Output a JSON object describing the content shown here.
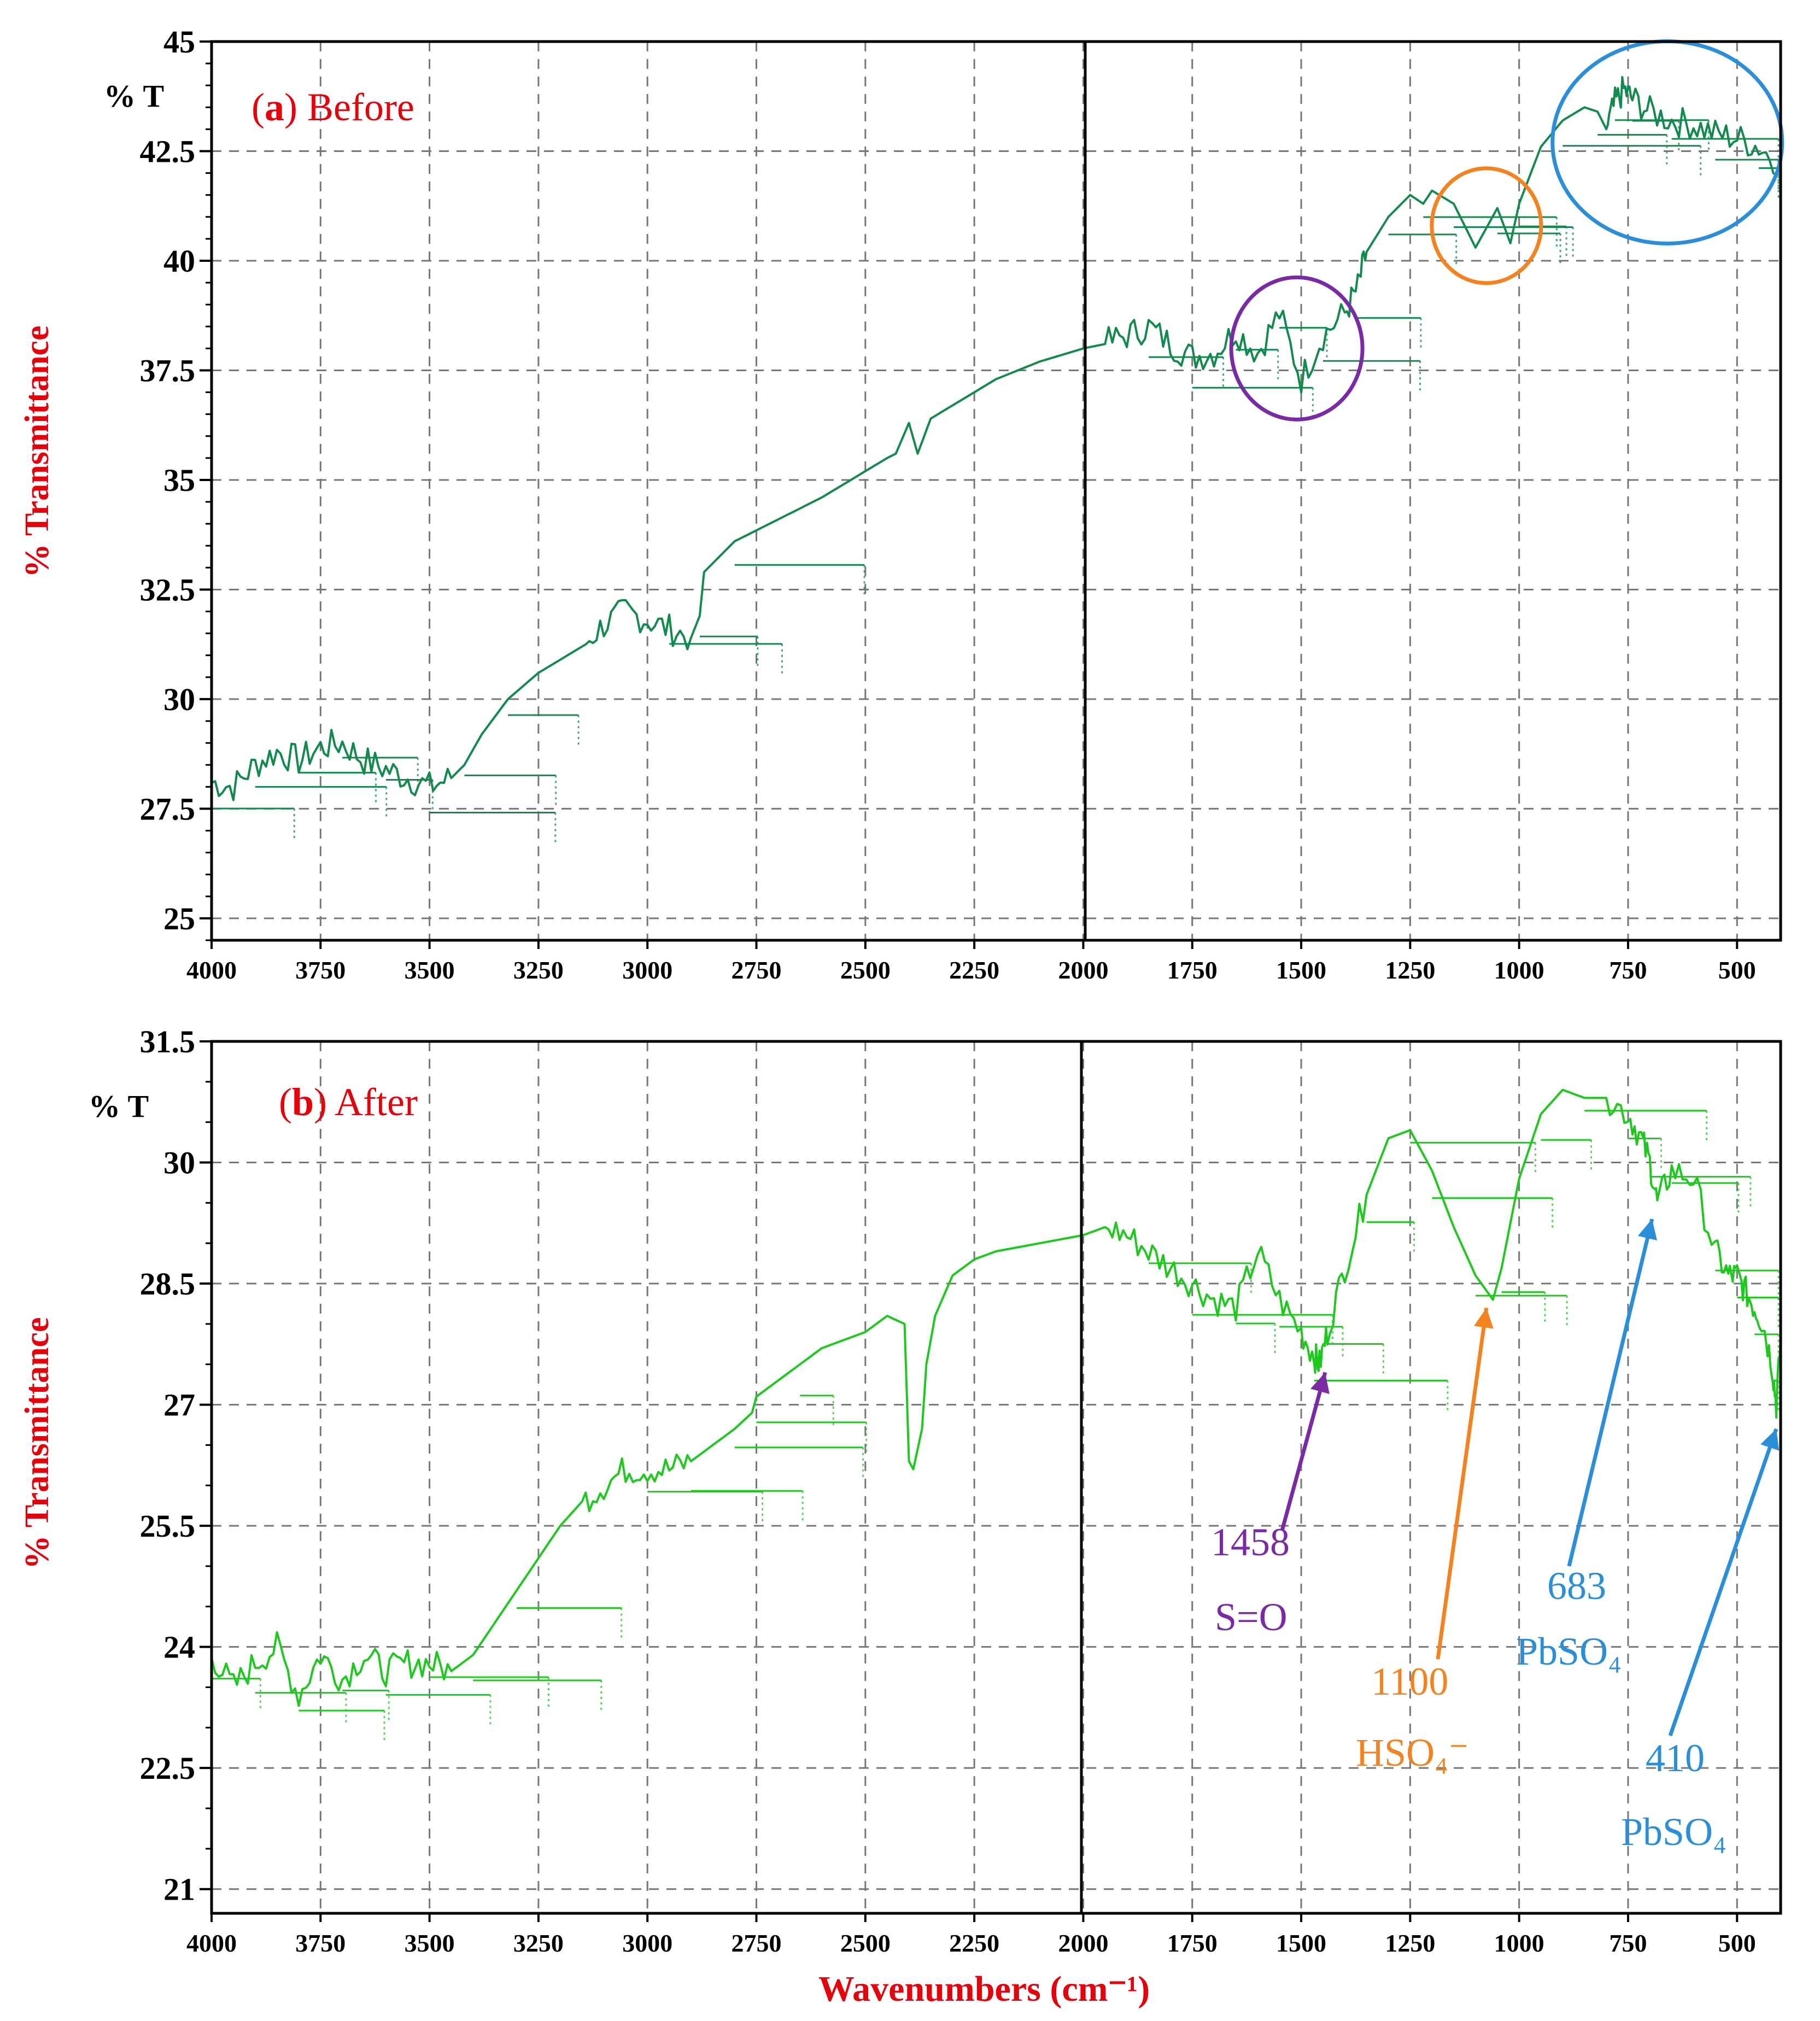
{
  "colors": {
    "label_red": "#e8000b",
    "series_before": "#128a4e",
    "series_after": "#1ec91e",
    "purple": "#7b2aa6",
    "orange": "#f5821f",
    "blue": "#2a8fd8",
    "grid": "#777777"
  },
  "shared": {
    "ylabel": "% Transmittance",
    "xlabel": "Wavenumbers (cm⁻¹)",
    "unit_label": "% T"
  },
  "chart_data": [
    {
      "type": "line",
      "panel": "a",
      "panel_label_prefix": "(",
      "panel_letter": "a",
      "panel_label_suffix": ") Before",
      "xlim": [
        4000,
        400
      ],
      "ylim": [
        24.5,
        45
      ],
      "x_ticks": [
        "4000",
        "3750",
        "3500",
        "3250",
        "3000",
        "2750",
        "2500",
        "2250",
        "2000",
        "1750",
        "1500",
        "1250",
        "1000",
        "750",
        "500"
      ],
      "y_ticks": [
        "25",
        "27.5",
        "30",
        "32.5",
        "35",
        "37.5",
        "40",
        "42.5",
        "45"
      ],
      "series": [
        {
          "name": "Before",
          "x": [
            4000,
            3950,
            3900,
            3850,
            3800,
            3750,
            3700,
            3650,
            3600,
            3550,
            3500,
            3450,
            3420,
            3380,
            3320,
            3250,
            3150,
            3100,
            3050,
            3000,
            2950,
            2900,
            2880,
            2870,
            2800,
            2700,
            2600,
            2500,
            2450,
            2430,
            2400,
            2380,
            2350,
            2300,
            2250,
            2200,
            2100,
            2000,
            1950,
            1900,
            1850,
            1800,
            1750,
            1700,
            1650,
            1600,
            1550,
            1500,
            1450,
            1400,
            1370,
            1350,
            1300,
            1250,
            1220,
            1200,
            1150,
            1100,
            1050,
            1020,
            1000,
            950,
            900,
            850,
            820,
            800,
            780,
            760,
            740,
            700,
            650,
            600,
            550,
            500,
            450,
            400
          ],
          "y": [
            28.1,
            28.0,
            28.5,
            28.8,
            28.6,
            28.9,
            29.0,
            28.6,
            28.4,
            28.2,
            28.0,
            28.2,
            28.5,
            29.2,
            30.0,
            30.6,
            31.2,
            31.7,
            32.0,
            31.8,
            31.6,
            31.4,
            31.9,
            32.9,
            33.6,
            34.1,
            34.6,
            35.2,
            35.5,
            35.6,
            36.3,
            35.6,
            36.4,
            36.7,
            37.0,
            37.3,
            37.7,
            38.0,
            38.1,
            38.3,
            38.5,
            38.1,
            37.8,
            37.9,
            38.4,
            37.9,
            38.8,
            37.3,
            38.3,
            38.8,
            39.4,
            40.2,
            41.0,
            41.5,
            41.3,
            41.6,
            41.3,
            40.3,
            41.2,
            40.4,
            41.3,
            42.6,
            43.2,
            43.5,
            43.4,
            43.0,
            43.6,
            43.9,
            43.7,
            43.4,
            43.2,
            43.1,
            42.9,
            42.8,
            42.6,
            42.2
          ]
        }
      ],
      "circles": [
        {
          "name": "S=O region",
          "x_center": 1510,
          "y_center": 38.0,
          "color": "purple"
        },
        {
          "name": "HSO4- region",
          "x_center": 1075,
          "y_center": 40.8,
          "color": "orange"
        },
        {
          "name": "PbSO4 region",
          "x_center": 660,
          "y_center": 42.7,
          "color": "blue"
        }
      ]
    },
    {
      "type": "line",
      "panel": "b",
      "panel_label_prefix": "(",
      "panel_letter": "b",
      "panel_label_suffix": ") After",
      "xlim": [
        4000,
        400
      ],
      "ylim": [
        20.7,
        31.5
      ],
      "x_ticks": [
        "4000",
        "3750",
        "3500",
        "3250",
        "3000",
        "2750",
        "2500",
        "2250",
        "2000",
        "1750",
        "1500",
        "1250",
        "1000",
        "750",
        "500"
      ],
      "y_ticks": [
        "21",
        "22.5",
        "24",
        "25.5",
        "27",
        "28.5",
        "30",
        "31.5"
      ],
      "series": [
        {
          "name": "After",
          "x": [
            4000,
            3950,
            3900,
            3850,
            3800,
            3750,
            3700,
            3650,
            3600,
            3550,
            3500,
            3450,
            3400,
            3350,
            3300,
            3250,
            3200,
            3150,
            3100,
            3050,
            3000,
            2950,
            2900,
            2850,
            2800,
            2760,
            2750,
            2700,
            2650,
            2600,
            2550,
            2500,
            2450,
            2410,
            2400,
            2390,
            2370,
            2360,
            2340,
            2300,
            2250,
            2200,
            2100,
            2000,
            1950,
            1900,
            1850,
            1800,
            1750,
            1700,
            1650,
            1600,
            1550,
            1500,
            1470,
            1458,
            1440,
            1400,
            1350,
            1300,
            1250,
            1230,
            1200,
            1150,
            1100,
            1060,
            1040,
            1000,
            950,
            900,
            850,
            800,
            750,
            720,
            700,
            683,
            650,
            600,
            550,
            520,
            500,
            480,
            460,
            440,
            420,
            410,
            400
          ],
          "y": [
            23.9,
            23.5,
            23.8,
            24.0,
            23.4,
            23.9,
            23.6,
            23.9,
            23.7,
            23.8,
            23.8,
            23.7,
            23.9,
            24.3,
            24.7,
            25.1,
            25.5,
            25.8,
            26.0,
            26.2,
            26.2,
            26.2,
            26.3,
            26.5,
            26.7,
            26.9,
            27.1,
            27.3,
            27.5,
            27.7,
            27.8,
            27.9,
            28.1,
            28.0,
            26.3,
            26.2,
            26.7,
            27.5,
            28.1,
            28.6,
            28.8,
            28.9,
            29.0,
            29.1,
            29.2,
            29.1,
            28.9,
            28.7,
            28.5,
            28.3,
            28.2,
            28.9,
            28.3,
            27.9,
            27.6,
            27.5,
            27.9,
            28.7,
            29.6,
            30.3,
            30.4,
            30.2,
            29.9,
            29.2,
            28.6,
            28.3,
            28.7,
            29.8,
            30.6,
            30.9,
            30.8,
            30.8,
            30.6,
            30.3,
            30.0,
            29.5,
            29.9,
            29.8,
            28.9,
            28.6,
            28.6,
            28.4,
            28.2,
            28.0,
            27.5,
            27.0,
            27.8
          ]
        }
      ],
      "annotations": [
        {
          "value": "1458",
          "group": "S=O",
          "color": "purple",
          "tip_x": 1445,
          "tip_y": 27.4
        },
        {
          "value": "1100",
          "group": "HSO₄⁻",
          "color": "orange",
          "tip_x": 1075,
          "tip_y": 28.2
        },
        {
          "value": "683",
          "group": "PbSO₄",
          "color": "blue",
          "tip_x": 695,
          "tip_y": 29.3
        },
        {
          "value": "410",
          "group": "PbSO₄",
          "color": "blue",
          "tip_x": 410,
          "tip_y": 26.7
        }
      ]
    }
  ]
}
